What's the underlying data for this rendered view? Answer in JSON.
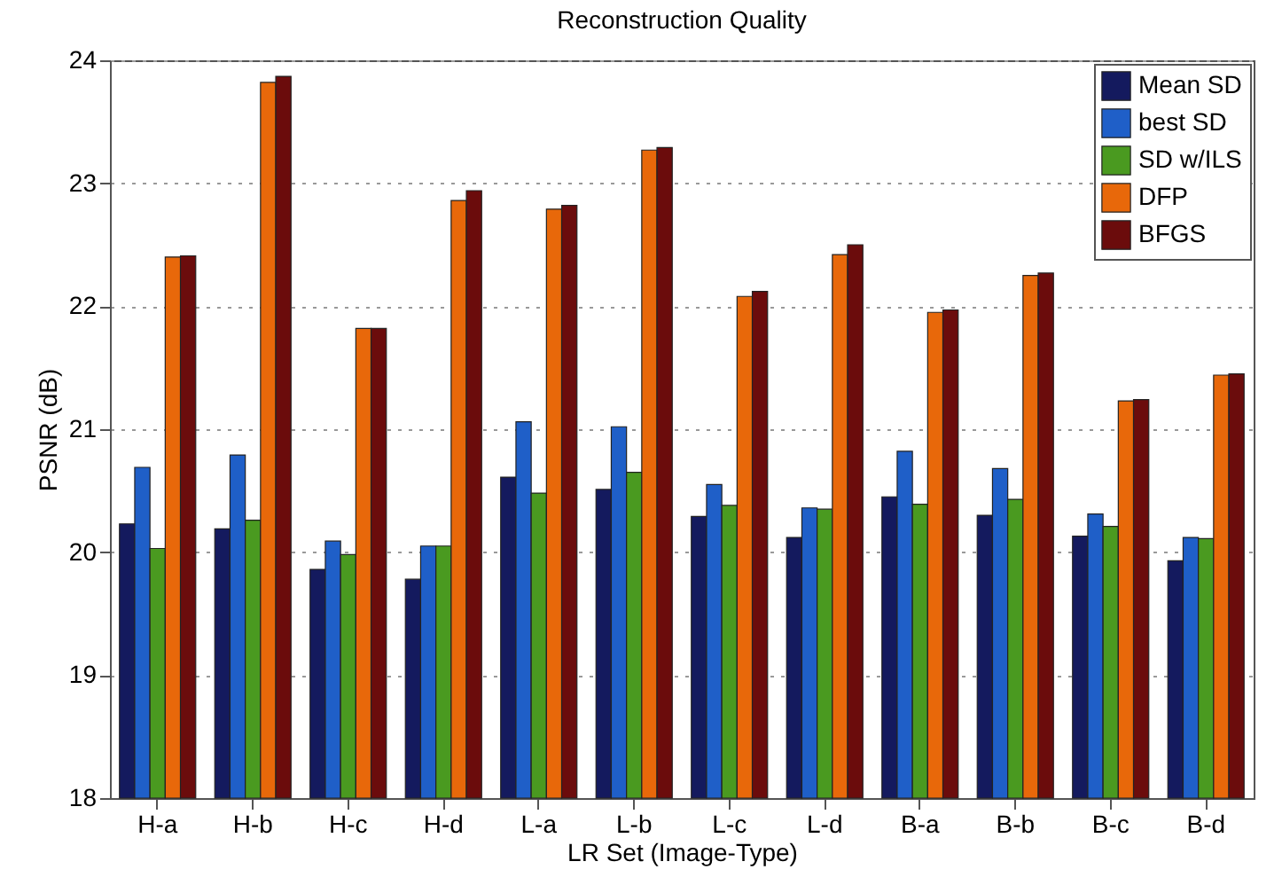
{
  "chart_data": {
    "type": "bar",
    "title": "Reconstruction Quality",
    "xlabel": "LR Set (Image-Type)",
    "ylabel": "PSNR (dB)",
    "categories": [
      "H-a",
      "H-b",
      "H-c",
      "H-d",
      "L-a",
      "L-b",
      "L-c",
      "L-d",
      "B-a",
      "B-b",
      "B-c",
      "B-d"
    ],
    "series": [
      {
        "name": "Mean SD",
        "color": "#141a5e",
        "values": [
          20.23,
          20.19,
          19.86,
          19.78,
          20.61,
          20.51,
          20.29,
          20.12,
          20.45,
          20.3,
          20.13,
          19.93
        ]
      },
      {
        "name": "best SD",
        "color": "#1f5fc8",
        "values": [
          20.69,
          20.79,
          20.09,
          20.05,
          21.06,
          21.02,
          20.55,
          20.36,
          20.82,
          20.68,
          20.31,
          20.12
        ]
      },
      {
        "name": "SD w/ILS",
        "color": "#4a9a20",
        "values": [
          20.03,
          20.26,
          19.98,
          20.05,
          20.48,
          20.65,
          20.38,
          20.35,
          20.39,
          20.43,
          20.21,
          20.11
        ]
      },
      {
        "name": "DFP",
        "color": "#e8680a",
        "values": [
          22.4,
          23.82,
          21.82,
          22.86,
          22.79,
          23.27,
          22.08,
          22.42,
          21.95,
          22.25,
          21.23,
          21.44
        ]
      },
      {
        "name": "BFGS",
        "color": "#6b0c0c",
        "values": [
          22.41,
          23.87,
          21.82,
          22.94,
          22.82,
          23.29,
          22.12,
          22.5,
          21.97,
          22.27,
          21.24,
          21.45
        ]
      }
    ],
    "ylim": [
      18,
      24
    ],
    "yticks": [
      18,
      19,
      20,
      21,
      22,
      23,
      24
    ],
    "grid": "y",
    "legend": "top right"
  }
}
